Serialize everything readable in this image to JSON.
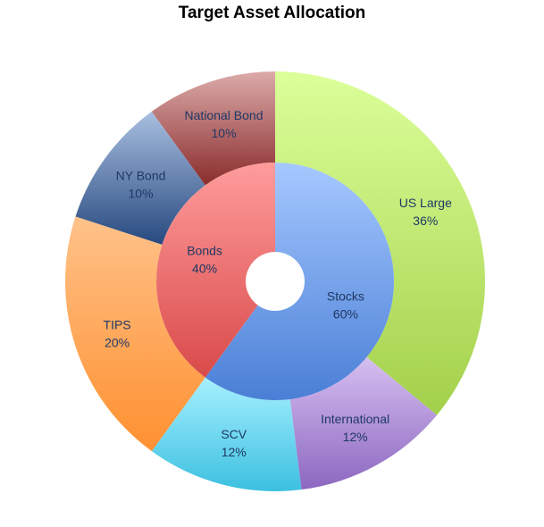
{
  "chart_data": {
    "type": "pie",
    "title": "Target Asset Allocation",
    "rings": [
      {
        "name": "inner",
        "slices": [
          {
            "label": "Stocks",
            "value": 60,
            "display": "60%",
            "colors": [
              "#a6c8ff",
              "#4a7fd6"
            ]
          },
          {
            "label": "Bonds",
            "value": 40,
            "display": "40%",
            "colors": [
              "#ff9c9c",
              "#d94a4a"
            ]
          }
        ]
      },
      {
        "name": "outer",
        "slices": [
          {
            "label": "US Large",
            "value": 36,
            "display": "36%",
            "colors": [
              "#dcff9a",
              "#a3d04a"
            ]
          },
          {
            "label": "International",
            "value": 12,
            "display": "12%",
            "colors": [
              "#d6bff0",
              "#8c67c0"
            ]
          },
          {
            "label": "SCV",
            "value": 12,
            "display": "12%",
            "colors": [
              "#a6f0ff",
              "#3cc0e0"
            ]
          },
          {
            "label": "TIPS",
            "value": 20,
            "display": "20%",
            "colors": [
              "#ffc28a",
              "#ff9030"
            ]
          },
          {
            "label": "NY Bond",
            "value": 10,
            "display": "10%",
            "colors": [
              "#a8bfe0",
              "#27497f"
            ]
          },
          {
            "label": "National Bond",
            "value": 10,
            "display": "10%",
            "colors": [
              "#dcaaaa",
              "#8a2c2c"
            ]
          }
        ]
      }
    ],
    "legend": "none"
  }
}
